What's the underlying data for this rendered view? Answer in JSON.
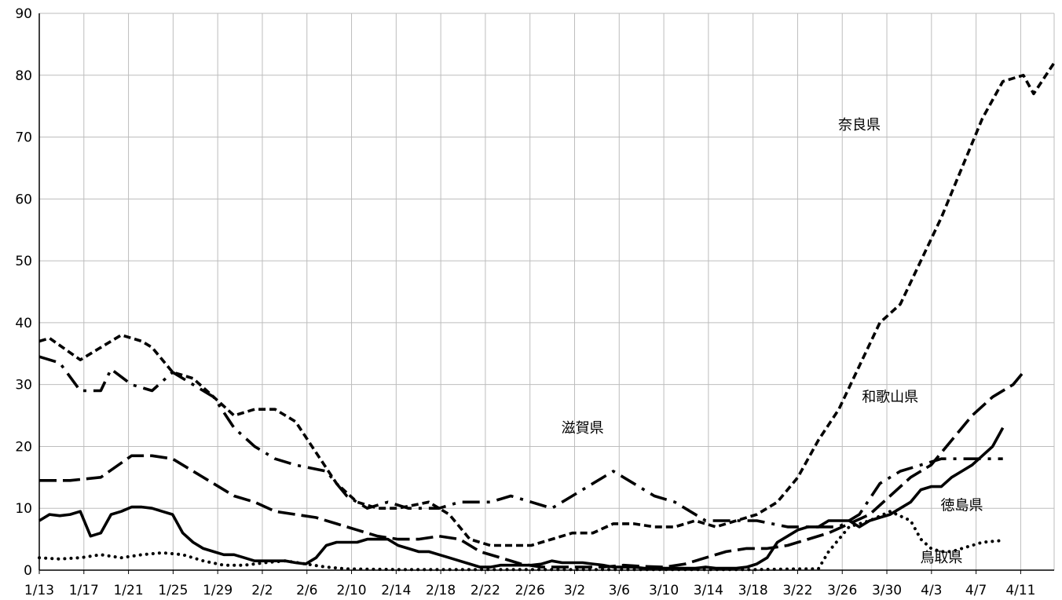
{
  "chart_data": {
    "type": "line",
    "title": "",
    "xlabel": "",
    "ylabel": "",
    "ylim": [
      0,
      90
    ],
    "yticks": [
      0,
      10,
      20,
      30,
      40,
      50,
      60,
      70,
      80,
      90
    ],
    "grid": true,
    "x_tick_labels": [
      "1/13",
      "1/17",
      "1/21",
      "1/25",
      "1/29",
      "2/2",
      "2/6",
      "2/10",
      "2/14",
      "2/18",
      "2/22",
      "2/26",
      "3/2",
      "3/6",
      "3/10",
      "3/14",
      "3/18",
      "3/22",
      "3/26",
      "3/30",
      "4/3",
      "4/7",
      "4/11"
    ],
    "x_tick_every": 4,
    "n_points": 92,
    "series": [
      {
        "name": "奈良県",
        "style": "short-dash",
        "label_anchor": [
          80,
          72
        ],
        "anchors": [
          [
            0,
            37
          ],
          [
            1,
            37.5
          ],
          [
            4,
            34
          ],
          [
            6,
            36
          ],
          [
            8,
            38
          ],
          [
            10,
            37
          ],
          [
            11,
            36
          ],
          [
            13,
            32
          ],
          [
            15,
            31
          ],
          [
            17,
            28
          ],
          [
            19,
            25
          ],
          [
            21,
            26
          ],
          [
            23,
            26
          ],
          [
            25,
            24
          ],
          [
            27,
            19
          ],
          [
            29,
            14
          ],
          [
            31,
            11
          ],
          [
            33,
            10
          ],
          [
            35,
            10
          ],
          [
            38,
            11
          ],
          [
            40,
            9
          ],
          [
            42,
            5
          ],
          [
            44,
            4
          ],
          [
            46,
            4
          ],
          [
            48,
            4
          ],
          [
            50,
            5
          ],
          [
            52,
            6
          ],
          [
            54,
            6
          ],
          [
            56,
            7.5
          ],
          [
            58,
            7.5
          ],
          [
            60,
            7
          ],
          [
            62,
            7
          ],
          [
            64,
            8
          ],
          [
            66,
            7
          ],
          [
            68,
            8
          ],
          [
            70,
            9
          ],
          [
            72,
            11
          ],
          [
            74,
            15
          ],
          [
            76,
            21
          ],
          [
            78,
            26
          ],
          [
            80,
            33
          ],
          [
            82,
            40
          ],
          [
            84,
            43
          ],
          [
            86,
            50
          ],
          [
            88,
            57
          ],
          [
            90,
            65
          ],
          [
            92,
            73
          ],
          [
            94,
            79
          ],
          [
            96,
            80
          ],
          [
            97,
            77
          ],
          [
            99,
            82
          ]
        ]
      },
      {
        "name": "滋賀県",
        "style": "dash-dot",
        "label_anchor": [
          53,
          23
        ],
        "anchors": [
          [
            0,
            34.5
          ],
          [
            2,
            33.5
          ],
          [
            4,
            29
          ],
          [
            6,
            29
          ],
          [
            7,
            32.5
          ],
          [
            9,
            30
          ],
          [
            11,
            29
          ],
          [
            13,
            32
          ],
          [
            15,
            30
          ],
          [
            17,
            28
          ],
          [
            19,
            23
          ],
          [
            21,
            20
          ],
          [
            23,
            18
          ],
          [
            25,
            17
          ],
          [
            28,
            16
          ],
          [
            30,
            12
          ],
          [
            32,
            10
          ],
          [
            34,
            11
          ],
          [
            36,
            10
          ],
          [
            39,
            10
          ],
          [
            41,
            11
          ],
          [
            44,
            11
          ],
          [
            46,
            12
          ],
          [
            48,
            11
          ],
          [
            50,
            10
          ],
          [
            52,
            12
          ],
          [
            54,
            14
          ],
          [
            56,
            16
          ],
          [
            58,
            14
          ],
          [
            60,
            12
          ],
          [
            62,
            11
          ],
          [
            64,
            9
          ],
          [
            65,
            8
          ],
          [
            68,
            8
          ],
          [
            70,
            8
          ],
          [
            73,
            7
          ],
          [
            76,
            7
          ],
          [
            78,
            7
          ],
          [
            80,
            9
          ],
          [
            82,
            14
          ],
          [
            84,
            16
          ],
          [
            86,
            17
          ],
          [
            88,
            18
          ],
          [
            90,
            18
          ],
          [
            92,
            18
          ],
          [
            94,
            18
          ]
        ]
      },
      {
        "name": "和歌山県",
        "style": "long-dash",
        "label_anchor": [
          83,
          28
        ],
        "anchors": [
          [
            0,
            14.5
          ],
          [
            3,
            14.5
          ],
          [
            6,
            15
          ],
          [
            9,
            18.5
          ],
          [
            11,
            18.5
          ],
          [
            13,
            18
          ],
          [
            15,
            16
          ],
          [
            17,
            14
          ],
          [
            19,
            12
          ],
          [
            21,
            11
          ],
          [
            23,
            9.5
          ],
          [
            25,
            9
          ],
          [
            27,
            8.5
          ],
          [
            29,
            7.5
          ],
          [
            31,
            6.5
          ],
          [
            33,
            5.5
          ],
          [
            35,
            5
          ],
          [
            37,
            5
          ],
          [
            39,
            5.5
          ],
          [
            41,
            5
          ],
          [
            43,
            3
          ],
          [
            45,
            2
          ],
          [
            47,
            1
          ],
          [
            49,
            0.5
          ],
          [
            51,
            0.5
          ],
          [
            53,
            0.5
          ],
          [
            55,
            0.5
          ],
          [
            57,
            0.8
          ],
          [
            59,
            0.6
          ],
          [
            61,
            0.5
          ],
          [
            63,
            1
          ],
          [
            65,
            2
          ],
          [
            67,
            3
          ],
          [
            69,
            3.5
          ],
          [
            71,
            3.5
          ],
          [
            73,
            4
          ],
          [
            75,
            5
          ],
          [
            77,
            6
          ],
          [
            79,
            7.5
          ],
          [
            81,
            9
          ],
          [
            83,
            12
          ],
          [
            85,
            15
          ],
          [
            87,
            17
          ],
          [
            89,
            21
          ],
          [
            91,
            25
          ],
          [
            93,
            28
          ],
          [
            95,
            30
          ],
          [
            96,
            32
          ]
        ]
      },
      {
        "name": "徳島県",
        "style": "solid",
        "label_anchor": [
          90,
          10.5
        ],
        "anchors": [
          [
            0,
            8
          ],
          [
            1,
            9
          ],
          [
            2,
            8.8
          ],
          [
            3,
            9
          ],
          [
            4,
            9.5
          ],
          [
            5,
            5.5
          ],
          [
            6,
            6
          ],
          [
            7,
            9
          ],
          [
            8,
            9.5
          ],
          [
            9,
            10.2
          ],
          [
            10,
            10.2
          ],
          [
            11,
            10
          ],
          [
            12,
            9.5
          ],
          [
            13,
            9
          ],
          [
            14,
            6
          ],
          [
            15,
            4.5
          ],
          [
            16,
            3.5
          ],
          [
            17,
            3
          ],
          [
            18,
            2.5
          ],
          [
            19,
            2.5
          ],
          [
            20,
            2
          ],
          [
            21,
            1.5
          ],
          [
            22,
            1.5
          ],
          [
            23,
            1.5
          ],
          [
            24,
            1.5
          ],
          [
            25,
            1.2
          ],
          [
            26,
            1
          ],
          [
            27,
            2
          ],
          [
            28,
            4
          ],
          [
            29,
            4.5
          ],
          [
            30,
            4.5
          ],
          [
            31,
            4.5
          ],
          [
            32,
            5
          ],
          [
            33,
            5
          ],
          [
            34,
            5
          ],
          [
            35,
            4
          ],
          [
            36,
            3.5
          ],
          [
            37,
            3
          ],
          [
            38,
            3
          ],
          [
            39,
            2.5
          ],
          [
            40,
            2
          ],
          [
            41,
            1.5
          ],
          [
            42,
            1
          ],
          [
            43,
            0.5
          ],
          [
            44,
            0.5
          ],
          [
            45,
            0.8
          ],
          [
            46,
            0.8
          ],
          [
            47,
            0.8
          ],
          [
            48,
            0.8
          ],
          [
            49,
            1
          ],
          [
            50,
            1.5
          ],
          [
            51,
            1.2
          ],
          [
            52,
            1.2
          ],
          [
            53,
            1.2
          ],
          [
            54,
            1
          ],
          [
            55,
            0.8
          ],
          [
            56,
            0.5
          ],
          [
            57,
            0.5
          ],
          [
            58,
            0.5
          ],
          [
            59,
            0.3
          ],
          [
            60,
            0.3
          ],
          [
            61,
            0.3
          ],
          [
            62,
            0.3
          ],
          [
            63,
            0.3
          ],
          [
            64,
            0.3
          ],
          [
            65,
            0.5
          ],
          [
            66,
            0.3
          ],
          [
            67,
            0.3
          ],
          [
            68,
            0.3
          ],
          [
            69,
            0.5
          ],
          [
            70,
            1
          ],
          [
            71,
            2
          ],
          [
            72,
            4.5
          ],
          [
            73,
            5.5
          ],
          [
            74,
            6.5
          ],
          [
            75,
            7
          ],
          [
            76,
            7
          ],
          [
            77,
            8
          ],
          [
            78,
            8
          ],
          [
            79,
            8
          ],
          [
            80,
            7
          ],
          [
            81,
            8
          ],
          [
            82,
            8.5
          ],
          [
            83,
            9
          ],
          [
            84,
            10
          ],
          [
            85,
            11
          ],
          [
            86,
            13
          ],
          [
            87,
            13.5
          ],
          [
            88,
            13.5
          ],
          [
            89,
            15
          ],
          [
            90,
            16
          ],
          [
            91,
            17
          ],
          [
            92,
            18.5
          ],
          [
            93,
            20
          ],
          [
            94,
            23
          ]
        ]
      },
      {
        "name": "鳥取県",
        "style": "dotted",
        "label_anchor": [
          88,
          2
        ],
        "anchors": [
          [
            0,
            2
          ],
          [
            2,
            1.8
          ],
          [
            4,
            2
          ],
          [
            6,
            2.5
          ],
          [
            8,
            2
          ],
          [
            10,
            2.5
          ],
          [
            12,
            2.8
          ],
          [
            14,
            2.5
          ],
          [
            16,
            1.5
          ],
          [
            18,
            0.8
          ],
          [
            20,
            0.8
          ],
          [
            22,
            1.2
          ],
          [
            24,
            1.5
          ],
          [
            26,
            1
          ],
          [
            28,
            0.5
          ],
          [
            30,
            0.2
          ],
          [
            35,
            0.1
          ],
          [
            40,
            0.1
          ],
          [
            45,
            0.1
          ],
          [
            50,
            0.1
          ],
          [
            55,
            0.1
          ],
          [
            60,
            0.1
          ],
          [
            65,
            0.1
          ],
          [
            70,
            0.1
          ],
          [
            74,
            0.2
          ],
          [
            76,
            0.2
          ],
          [
            77,
            3
          ],
          [
            79,
            7
          ],
          [
            81,
            8
          ],
          [
            83,
            9.5
          ],
          [
            85,
            8
          ],
          [
            86,
            5
          ],
          [
            87,
            3.5
          ],
          [
            88,
            3
          ],
          [
            89,
            3
          ],
          [
            90,
            3.5
          ],
          [
            91,
            4
          ],
          [
            92,
            4.5
          ],
          [
            94,
            4.8
          ]
        ]
      }
    ]
  }
}
